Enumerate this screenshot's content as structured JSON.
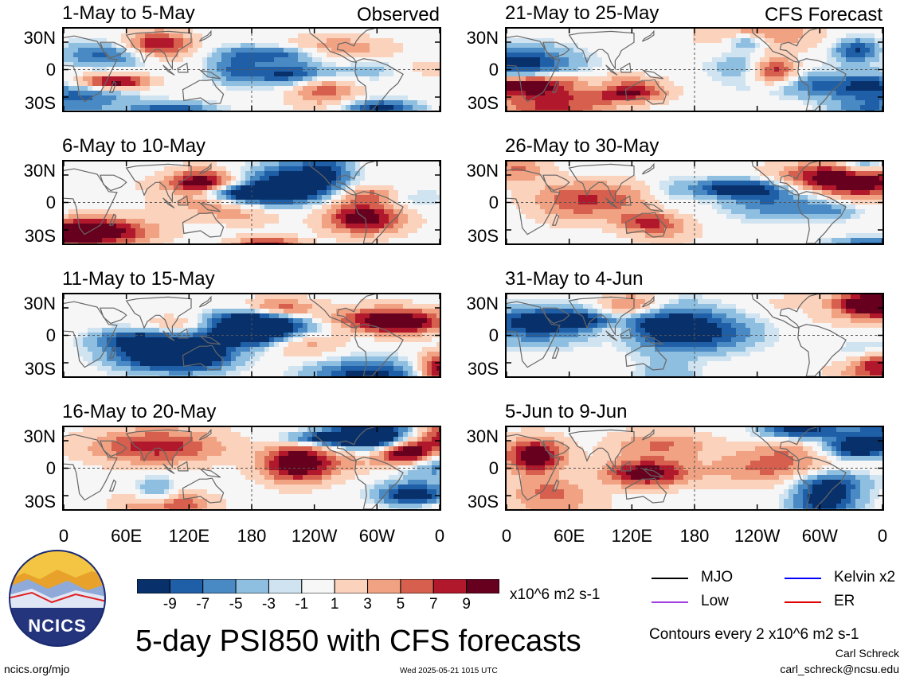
{
  "chart_data": {
    "type": "heatmap",
    "title": "5-day PSI850 with CFS forecasts",
    "column_tags": [
      "Observed",
      "CFS Forecast"
    ],
    "panels": [
      {
        "label": "1-May to 5-May",
        "column": "Observed"
      },
      {
        "label": "6-May to 10-May",
        "column": "Observed"
      },
      {
        "label": "11-May to 15-May",
        "column": "Observed"
      },
      {
        "label": "16-May to 20-May",
        "column": "Observed"
      },
      {
        "label": "21-May to 25-May",
        "column": "CFS Forecast"
      },
      {
        "label": "26-May to 30-May",
        "column": "CFS Forecast"
      },
      {
        "label": "31-May to 4-Jun",
        "column": "CFS Forecast"
      },
      {
        "label": "5-Jun to 9-Jun",
        "column": "CFS Forecast"
      }
    ],
    "y_ticks": [
      "30N",
      "0",
      "30S"
    ],
    "x_ticks": [
      "0",
      "60E",
      "120E",
      "180",
      "120W",
      "60W",
      "0"
    ],
    "colorbar": {
      "labels": [
        "-9",
        "-7",
        "-5",
        "-3",
        "-1",
        "1",
        "3",
        "5",
        "7",
        "9"
      ],
      "colors": [
        "#08306b",
        "#1f5fa8",
        "#4a8ac4",
        "#8fbfe0",
        "#cfe3f1",
        "#f7f7f7",
        "#fbd2bc",
        "#f0a283",
        "#d6604d",
        "#b2182b",
        "#67001f"
      ],
      "units": "x10^6 m2 s-1"
    },
    "legend": [
      {
        "label": "MJO",
        "color": "#000000"
      },
      {
        "label": "Kelvin x2",
        "color": "#0000ff"
      },
      {
        "label": "Low",
        "color": "#a040e0"
      },
      {
        "label": "ER",
        "color": "#e00000"
      }
    ],
    "contour_note": "Contours every 2 x10^6 m2 s-1"
  },
  "footer": {
    "logo_text": "NCICS",
    "website": "ncics.org/mjo",
    "timestamp": "Wed 2025-05-21 1015 UTC",
    "author": "Carl Schreck",
    "email": "carl_schreck@ncsu.edu"
  }
}
